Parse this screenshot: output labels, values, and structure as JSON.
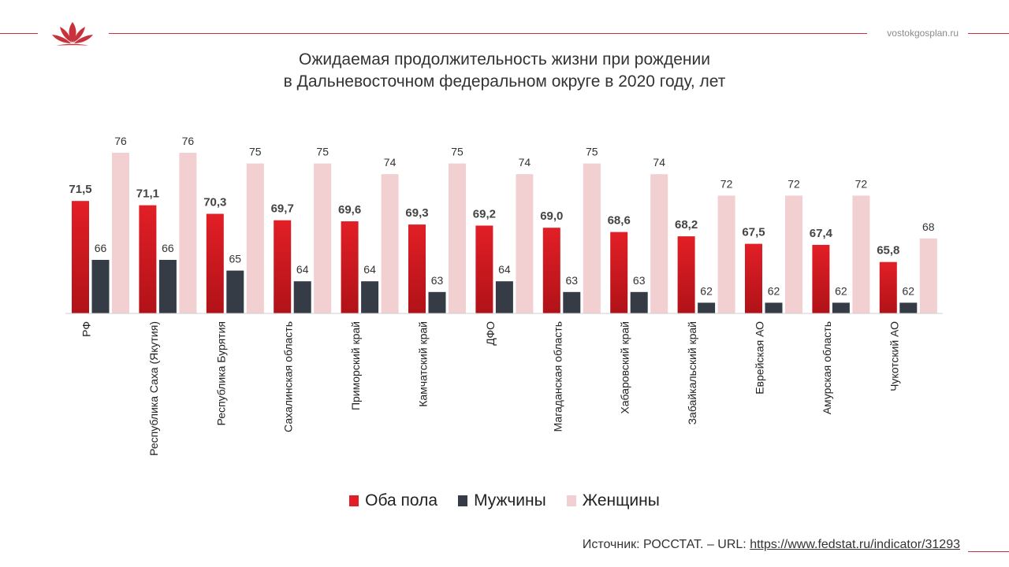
{
  "header": {
    "site": "vostokgosplan.ru",
    "logo_icon": "lotus-icon"
  },
  "title": {
    "line1": "Ожидаемая продолжительность жизни при рождении",
    "line2": "в Дальневосточном федеральном округе в 2020 году, лет"
  },
  "colors": {
    "accent": "#c8323c",
    "both": "#e21f26",
    "men": "#353c45",
    "women": "#f2cfd0"
  },
  "chart_data": {
    "type": "bar",
    "categories": [
      "РФ",
      "Республика Саха (Якутия)",
      "Республика Бурятия",
      "Сахалинская область",
      "Приморский край",
      "Камчатский край",
      "ДФО",
      "Магаданская область",
      "Хабаровский край",
      "Забайкальский край",
      "Еврейская АО",
      "Амурская область",
      "Чукотский АО"
    ],
    "series": [
      {
        "name": "Оба пола",
        "values": [
          71.5,
          71.1,
          70.3,
          69.7,
          69.6,
          69.3,
          69.2,
          69.0,
          68.6,
          68.2,
          67.5,
          67.4,
          65.8
        ],
        "labels": [
          "71,5",
          "71,1",
          "70,3",
          "69,7",
          "69,6",
          "69,3",
          "69,2",
          "69,0",
          "68,6",
          "68,2",
          "67,5",
          "67,4",
          "65,8"
        ]
      },
      {
        "name": "Мужчины",
        "values": [
          66,
          66,
          65,
          64,
          64,
          63,
          64,
          63,
          63,
          62,
          62,
          62,
          62
        ],
        "labels": [
          "66",
          "66",
          "65",
          "64",
          "64",
          "63",
          "64",
          "63",
          "63",
          "62",
          "62",
          "62",
          "62"
        ]
      },
      {
        "name": "Женщины",
        "values": [
          76,
          76,
          75,
          75,
          74,
          75,
          74,
          75,
          74,
          72,
          72,
          72,
          68
        ],
        "labels": [
          "76",
          "76",
          "75",
          "75",
          "74",
          "75",
          "74",
          "75",
          "74",
          "72",
          "72",
          "72",
          "68"
        ]
      }
    ],
    "ylim": [
      61,
      76
    ],
    "grid": false,
    "legend_position": "bottom"
  },
  "source": {
    "prefix": "Источник: РОССТАТ. – URL: ",
    "url": "https://www.fedstat.ru/indicator/31293"
  }
}
